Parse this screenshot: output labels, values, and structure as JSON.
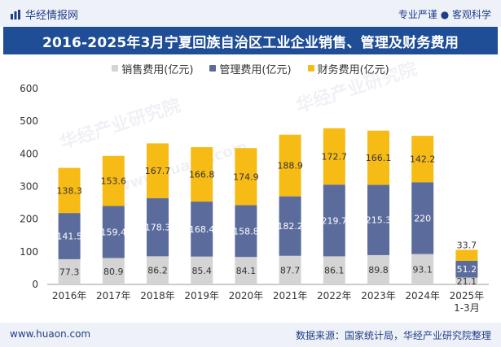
{
  "header": {
    "brand": "华经情报网",
    "tagline": "专业严谨 ● 客观科学"
  },
  "title": "2016-2025年3月宁夏回族自治区工业企业销售、管理及财务费用",
  "footer": {
    "website": "www.huaon.com",
    "source": "数据来源：国家统计局，华经产业研究院整理"
  },
  "watermarks": [
    "华经产业研究院",
    "华经产业研究院",
    "www.huaon.com"
  ],
  "chart_data": {
    "type": "bar",
    "stacked": true,
    "categories": [
      "2016年",
      "2017年",
      "2018年",
      "2019年",
      "2020年",
      "2021年",
      "2022年",
      "2023年",
      "2024年",
      "2025年\n1-3月"
    ],
    "series": [
      {
        "name": "销售费用(亿元)",
        "color": "#d4d4d4",
        "values": [
          77.3,
          80.9,
          86.2,
          85.4,
          84.1,
          87.7,
          86.1,
          89.8,
          93.1,
          21.1
        ]
      },
      {
        "name": "管理费用(亿元)",
        "color": "#5b6c9c",
        "values": [
          141.5,
          159.4,
          178.3,
          168.4,
          158.8,
          182.2,
          219.7,
          215.3,
          220,
          51.2
        ]
      },
      {
        "name": "财务费用(亿元)",
        "color": "#f7bb16",
        "values": [
          138.3,
          153.6,
          167.7,
          166.8,
          174.9,
          188.9,
          172.7,
          166.1,
          142.2,
          33.7
        ]
      }
    ],
    "ylim": [
      0,
      600
    ],
    "yticks": [
      0,
      100,
      200,
      300,
      400,
      500,
      600
    ],
    "legend_position": "top"
  }
}
